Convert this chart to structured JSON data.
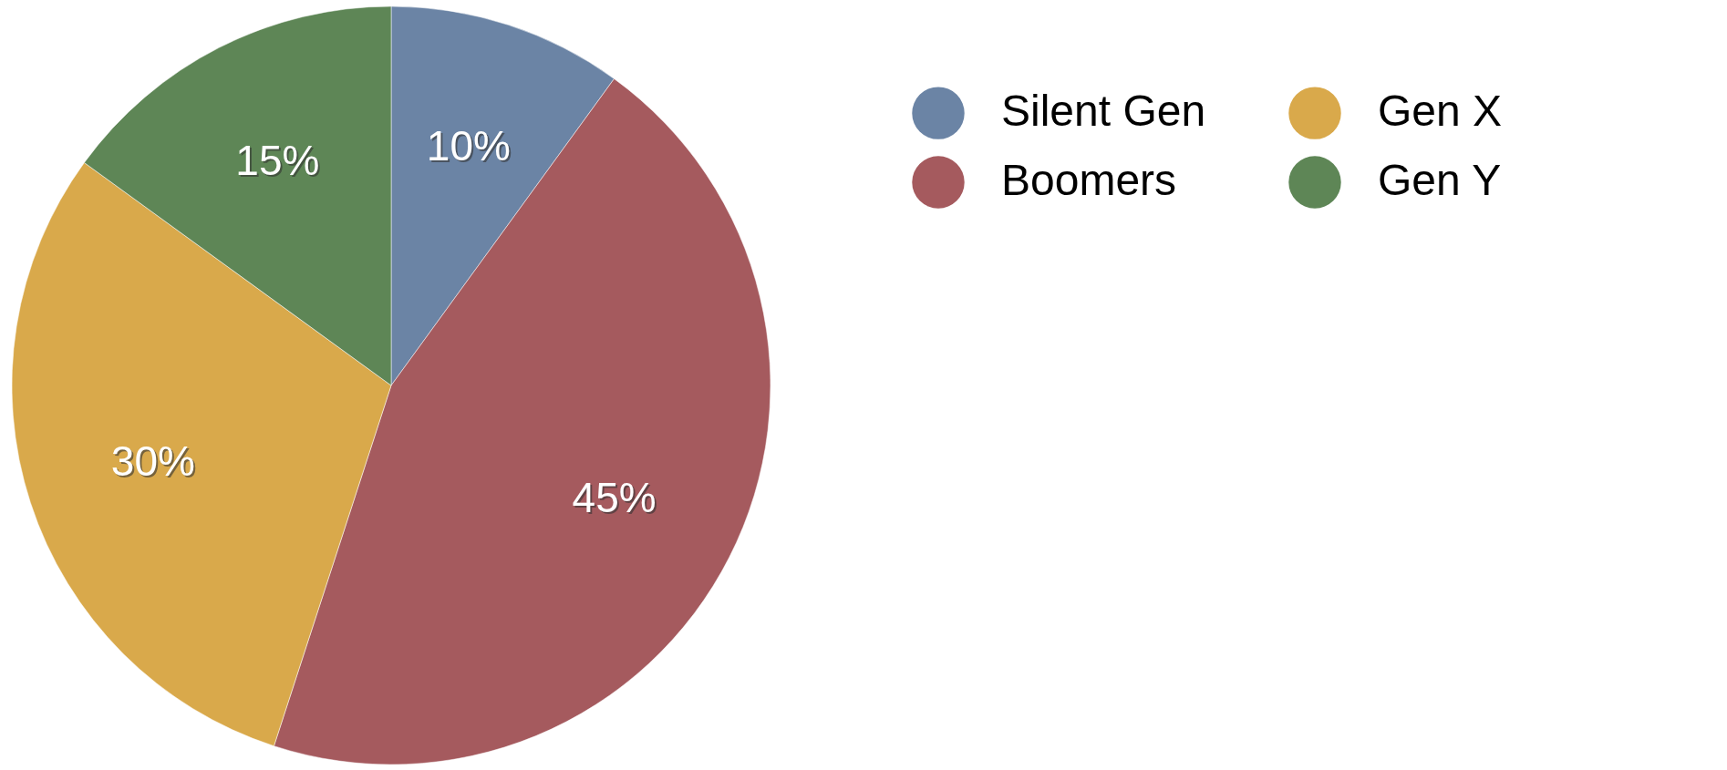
{
  "chart_data": {
    "type": "pie",
    "categories": [
      "Silent Gen",
      "Boomers",
      "Gen X",
      "Gen Y"
    ],
    "values": [
      10,
      45,
      30,
      15
    ],
    "colors": [
      "#6b84a5",
      "#a55a5e",
      "#d9a94b",
      "#5e8656"
    ],
    "value_labels": [
      "10%",
      "45%",
      "30%",
      "15%"
    ],
    "legend": "top right"
  }
}
